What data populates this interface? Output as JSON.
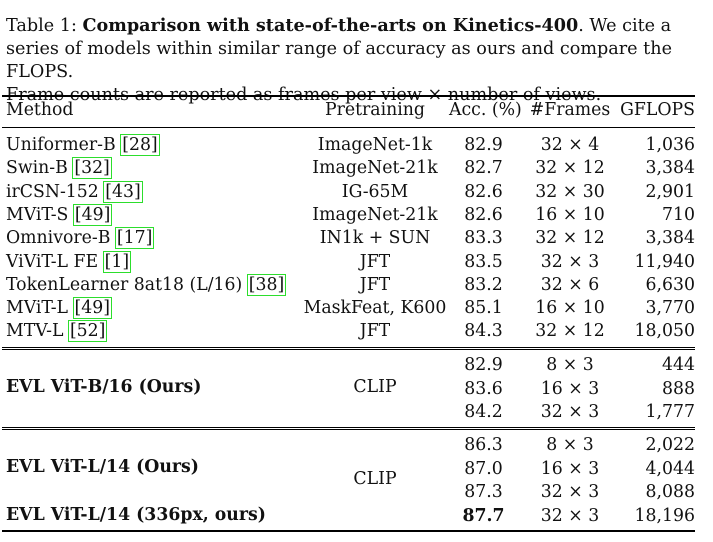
{
  "caption": {
    "label": "Table 1:",
    "title": "Comparison with state-of-the-arts on Kinetics-400",
    "line1_rest": ". We cite a",
    "line2": "series of models within similar range of accuracy as ours and compare the FLOPS.",
    "line3": "Frame counts are reported as frames per view × number of views."
  },
  "table": {
    "headers": [
      "Method",
      "Pretraining",
      "Acc. (%)",
      "#Frames",
      "GFLOPS"
    ],
    "baselines": [
      {
        "method": "Uniformer-B",
        "cite": "[28]",
        "pretraining": "ImageNet-1k",
        "acc": "82.9",
        "frames": "32 × 4",
        "gflops": "1,036"
      },
      {
        "method": "Swin-B",
        "cite": "[32]",
        "pretraining": "ImageNet-21k",
        "acc": "82.7",
        "frames": "32 × 12",
        "gflops": "3,384"
      },
      {
        "method": "irCSN-152",
        "cite": "[43]",
        "pretraining": "IG-65M",
        "acc": "82.6",
        "frames": "32 × 30",
        "gflops": "2,901"
      },
      {
        "method": "MViT-S",
        "cite": "[49]",
        "pretraining": "ImageNet-21k",
        "acc": "82.6",
        "frames": "16 × 10",
        "gflops": "710"
      },
      {
        "method": "Omnivore-B",
        "cite": "[17]",
        "pretraining": "IN1k + SUN",
        "acc": "83.3",
        "frames": "32 × 12",
        "gflops": "3,384"
      },
      {
        "method": "ViViT-L FE",
        "cite": "[1]",
        "pretraining": "JFT",
        "acc": "83.5",
        "frames": "32 × 3",
        "gflops": "11,940"
      },
      {
        "method": "TokenLearner 8at18 (L/16)",
        "cite": "[38]",
        "pretraining": "JFT",
        "acc": "83.2",
        "frames": "32 × 6",
        "gflops": "6,630"
      },
      {
        "method": "MViT-L",
        "cite": "[49]",
        "pretraining": "MaskFeat, K600",
        "acc": "85.1",
        "frames": "16 × 10",
        "gflops": "3,770"
      },
      {
        "method": "MTV-L",
        "cite": "[52]",
        "pretraining": "JFT",
        "acc": "84.3",
        "frames": "32 × 12",
        "gflops": "18,050"
      }
    ],
    "evl_b": {
      "method": "EVL ViT-B/16 (Ours)",
      "pretraining": "CLIP",
      "rows": [
        {
          "acc": "82.9",
          "frames": "8 × 3",
          "gflops": "444"
        },
        {
          "acc": "83.6",
          "frames": "16 × 3",
          "gflops": "888"
        },
        {
          "acc": "84.2",
          "frames": "32 × 3",
          "gflops": "1,777"
        }
      ]
    },
    "evl_l": {
      "method": "EVL ViT-L/14 (Ours)",
      "method_336": "EVL ViT-L/14 (336px, ours)",
      "pretraining": "CLIP",
      "rows": [
        {
          "acc": "86.3",
          "frames": "8 × 3",
          "gflops": "2,022"
        },
        {
          "acc": "87.0",
          "frames": "16 × 3",
          "gflops": "4,044"
        },
        {
          "acc": "87.3",
          "frames": "32 × 3",
          "gflops": "8,088"
        },
        {
          "acc": "87.7",
          "frames": "32 × 3",
          "gflops": "18,196"
        }
      ]
    }
  }
}
